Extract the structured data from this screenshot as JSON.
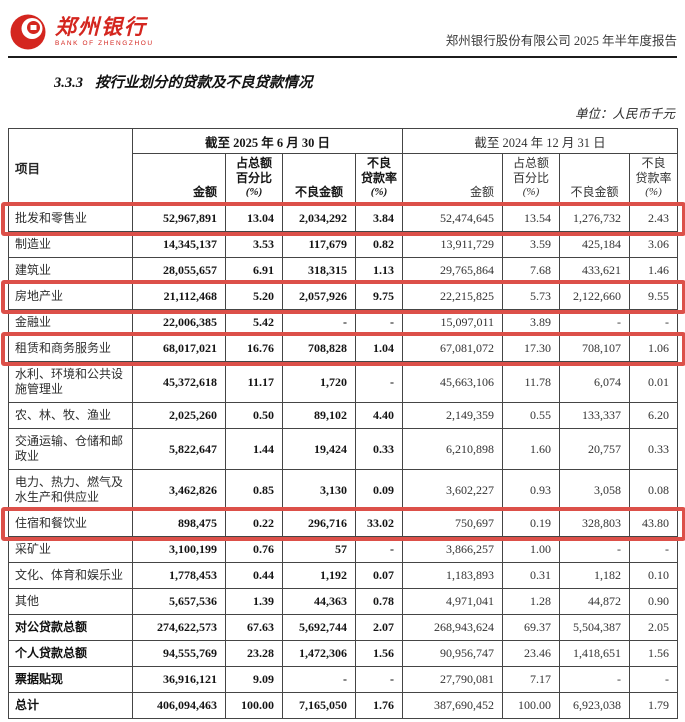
{
  "page": {
    "brand": {
      "name_cn": "郑州银行",
      "name_en": "BANK OF ZHENGZHOU"
    },
    "report_title": "郑州银行股份有限公司 2025 年半年度报告",
    "section_no": "3.3.3",
    "section_title": "按行业划分的贷款及不良贷款情况",
    "unit_note": "单位：人民币千元",
    "accent_red": "#d4261f",
    "highlight_red": "#dc5049"
  },
  "table": {
    "corner_header": "项目",
    "period_headers": [
      "截至 2025 年 6 月 30 日",
      "截至 2024 年 12 月 31 日"
    ],
    "sub_headers": {
      "amount": "金额",
      "pct_line1": "占总额",
      "pct_line2": "百分比",
      "npl_amount": "不良金额",
      "npl_rate_line1": "不良",
      "npl_rate_line2": "贷款率",
      "unit": "(%)"
    },
    "rows": [
      {
        "label": "批发和零售业",
        "bold": false,
        "highlight": true,
        "values": [
          "52,967,891",
          "13.04",
          "2,034,292",
          "3.84",
          "52,474,645",
          "13.54",
          "1,276,732",
          "2.43"
        ]
      },
      {
        "label": "制造业",
        "bold": false,
        "highlight": false,
        "values": [
          "14,345,137",
          "3.53",
          "117,679",
          "0.82",
          "13,911,729",
          "3.59",
          "425,184",
          "3.06"
        ]
      },
      {
        "label": "建筑业",
        "bold": false,
        "highlight": false,
        "values": [
          "28,055,657",
          "6.91",
          "318,315",
          "1.13",
          "29,765,864",
          "7.68",
          "433,621",
          "1.46"
        ]
      },
      {
        "label": "房地产业",
        "bold": false,
        "highlight": true,
        "values": [
          "21,112,468",
          "5.20",
          "2,057,926",
          "9.75",
          "22,215,825",
          "5.73",
          "2,122,660",
          "9.55"
        ]
      },
      {
        "label": "金融业",
        "bold": false,
        "highlight": false,
        "values": [
          "22,006,385",
          "5.42",
          "-",
          "-",
          "15,097,011",
          "3.89",
          "-",
          "-"
        ]
      },
      {
        "label": "租赁和商务服务业",
        "bold": false,
        "highlight": true,
        "values": [
          "68,017,021",
          "16.76",
          "708,828",
          "1.04",
          "67,081,072",
          "17.30",
          "708,107",
          "1.06"
        ]
      },
      {
        "label": "水利、环境和公共设施管理业",
        "bold": false,
        "highlight": false,
        "values": [
          "45,372,618",
          "11.17",
          "1,720",
          "-",
          "45,663,106",
          "11.78",
          "6,074",
          "0.01"
        ]
      },
      {
        "label": "农、林、牧、渔业",
        "bold": false,
        "highlight": false,
        "values": [
          "2,025,260",
          "0.50",
          "89,102",
          "4.40",
          "2,149,359",
          "0.55",
          "133,337",
          "6.20"
        ]
      },
      {
        "label": "交通运输、仓储和邮政业",
        "bold": false,
        "highlight": false,
        "values": [
          "5,822,647",
          "1.44",
          "19,424",
          "0.33",
          "6,210,898",
          "1.60",
          "20,757",
          "0.33"
        ]
      },
      {
        "label": "电力、热力、燃气及水生产和供应业",
        "bold": false,
        "highlight": false,
        "values": [
          "3,462,826",
          "0.85",
          "3,130",
          "0.09",
          "3,602,227",
          "0.93",
          "3,058",
          "0.08"
        ]
      },
      {
        "label": "住宿和餐饮业",
        "bold": false,
        "highlight": true,
        "values": [
          "898,475",
          "0.22",
          "296,716",
          "33.02",
          "750,697",
          "0.19",
          "328,803",
          "43.80"
        ]
      },
      {
        "label": "采矿业",
        "bold": false,
        "highlight": false,
        "values": [
          "3,100,199",
          "0.76",
          "57",
          "-",
          "3,866,257",
          "1.00",
          "-",
          "-"
        ]
      },
      {
        "label": "文化、体育和娱乐业",
        "bold": false,
        "highlight": false,
        "values": [
          "1,778,453",
          "0.44",
          "1,192",
          "0.07",
          "1,183,893",
          "0.31",
          "1,182",
          "0.10"
        ]
      },
      {
        "label": "其他",
        "bold": false,
        "highlight": false,
        "values": [
          "5,657,536",
          "1.39",
          "44,363",
          "0.78",
          "4,971,041",
          "1.28",
          "44,872",
          "0.90"
        ]
      },
      {
        "label": "对公贷款总额",
        "bold": true,
        "highlight": false,
        "values": [
          "274,622,573",
          "67.63",
          "5,692,744",
          "2.07",
          "268,943,624",
          "69.37",
          "5,504,387",
          "2.05"
        ]
      },
      {
        "label": "个人贷款总额",
        "bold": true,
        "highlight": false,
        "values": [
          "94,555,769",
          "23.28",
          "1,472,306",
          "1.56",
          "90,956,747",
          "23.46",
          "1,418,651",
          "1.56"
        ]
      },
      {
        "label": "票据贴现",
        "bold": true,
        "highlight": false,
        "values": [
          "36,916,121",
          "9.09",
          "-",
          "-",
          "27,790,081",
          "7.17",
          "-",
          "-"
        ]
      },
      {
        "label": "总计",
        "bold": true,
        "highlight": false,
        "values": [
          "406,094,463",
          "100.00",
          "7,165,050",
          "1.76",
          "387,690,452",
          "100.00",
          "6,923,038",
          "1.79"
        ]
      }
    ]
  }
}
